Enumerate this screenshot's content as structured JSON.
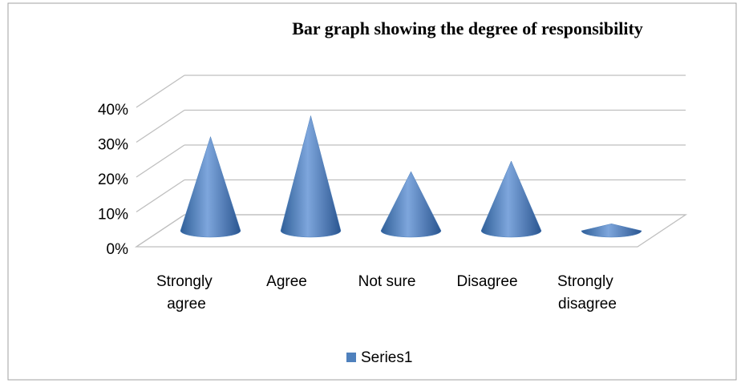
{
  "chart_data": {
    "type": "cone3d",
    "title": "Bar graph showing the degree of responsibility",
    "categories": [
      "Strongly agree",
      "Agree",
      "Not sure",
      "Disagree",
      "Strongly disagree"
    ],
    "series": [
      {
        "name": "Series1",
        "color": "#4f81bd",
        "values": [
          27,
          33,
          17,
          20,
          2
        ]
      }
    ],
    "ylim": [
      0,
      40
    ],
    "yticks": [
      {
        "value": 0,
        "label": "0%"
      },
      {
        "value": 10,
        "label": "10%"
      },
      {
        "value": 20,
        "label": "20%"
      },
      {
        "value": 30,
        "label": "30%"
      },
      {
        "value": 40,
        "label": "40%"
      }
    ],
    "grid": true,
    "legend": "bottom"
  }
}
